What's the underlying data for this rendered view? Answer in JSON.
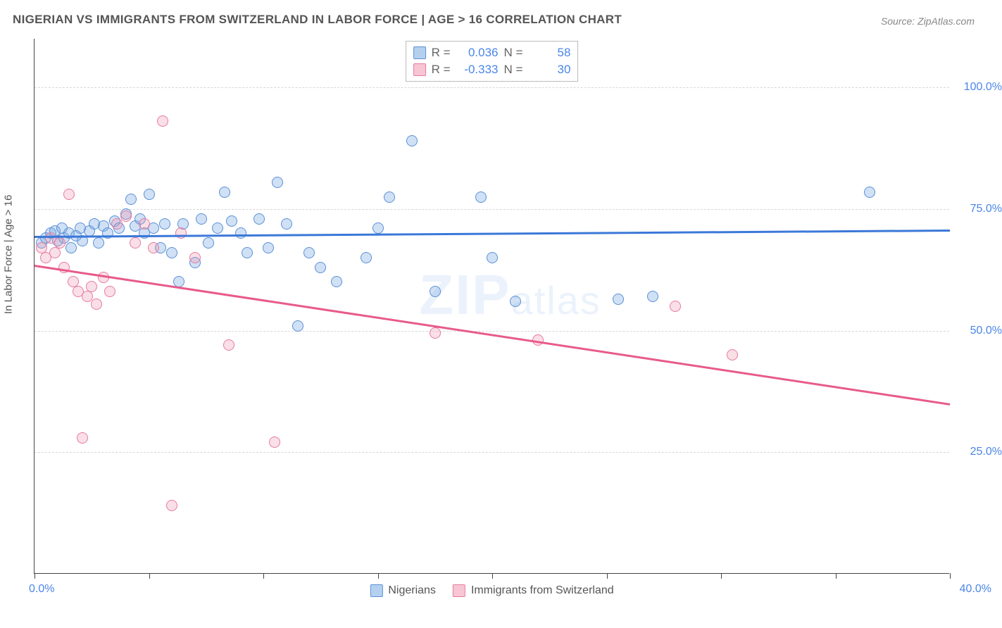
{
  "title": "NIGERIAN VS IMMIGRANTS FROM SWITZERLAND IN LABOR FORCE | AGE > 16 CORRELATION CHART",
  "source": "Source: ZipAtlas.com",
  "watermark_main": "ZIP",
  "watermark_sub": "atlas",
  "y_axis_title": "In Labor Force | Age > 16",
  "chart": {
    "type": "scatter",
    "background_color": "#ffffff",
    "grid_color": "#d7d7d7",
    "axis_color": "#444444",
    "xlim": [
      0,
      40
    ],
    "ylim": [
      0,
      110
    ],
    "x_ticks": [
      0,
      5,
      10,
      15,
      20,
      25,
      30,
      35,
      40
    ],
    "x_tick_labels": {
      "0": "0.0%",
      "40": "40.0%"
    },
    "y_gridlines": [
      25,
      50,
      75,
      100
    ],
    "y_labels": {
      "25": "25.0%",
      "50": "50.0%",
      "75": "75.0%",
      "100": "100.0%"
    },
    "marker_radius": 8,
    "series": [
      {
        "name": "Nigerians",
        "color_fill": "rgba(120,170,225,0.35)",
        "color_stroke": "#5b8fd6",
        "R": "0.036",
        "N": "58",
        "trend": {
          "x1": 0,
          "y1": 69.5,
          "x2": 40,
          "y2": 70.8,
          "color": "#3b78d8",
          "width": 2.5
        },
        "points": [
          [
            0.3,
            68
          ],
          [
            0.5,
            69
          ],
          [
            0.7,
            70
          ],
          [
            0.9,
            70.5
          ],
          [
            1.0,
            68.5
          ],
          [
            1.2,
            71
          ],
          [
            1.3,
            69
          ],
          [
            1.5,
            70
          ],
          [
            1.6,
            67
          ],
          [
            1.8,
            69.5
          ],
          [
            2.0,
            71
          ],
          [
            2.1,
            68.5
          ],
          [
            2.4,
            70.5
          ],
          [
            2.6,
            72
          ],
          [
            2.8,
            68
          ],
          [
            3.0,
            71.5
          ],
          [
            3.2,
            70
          ],
          [
            3.5,
            72.5
          ],
          [
            3.7,
            71
          ],
          [
            4.0,
            74
          ],
          [
            4.2,
            77
          ],
          [
            4.4,
            71.5
          ],
          [
            4.6,
            73
          ],
          [
            4.8,
            70
          ],
          [
            5.0,
            78
          ],
          [
            5.2,
            71
          ],
          [
            5.5,
            67
          ],
          [
            5.7,
            72
          ],
          [
            6.0,
            66
          ],
          [
            6.3,
            60
          ],
          [
            6.5,
            72
          ],
          [
            7.0,
            64
          ],
          [
            7.3,
            73
          ],
          [
            7.6,
            68
          ],
          [
            8.0,
            71
          ],
          [
            8.3,
            78.5
          ],
          [
            8.6,
            72.5
          ],
          [
            9.0,
            70
          ],
          [
            9.3,
            66
          ],
          [
            9.8,
            73
          ],
          [
            10.2,
            67
          ],
          [
            10.6,
            80.5
          ],
          [
            11.0,
            72
          ],
          [
            11.5,
            51
          ],
          [
            12.0,
            66
          ],
          [
            12.5,
            63
          ],
          [
            13.2,
            60
          ],
          [
            14.5,
            65
          ],
          [
            15.5,
            77.5
          ],
          [
            16.5,
            89
          ],
          [
            17.5,
            58
          ],
          [
            19.5,
            77.5
          ],
          [
            20.0,
            65
          ],
          [
            21.0,
            56
          ],
          [
            25.5,
            56.5
          ],
          [
            27.0,
            57
          ],
          [
            36.5,
            78.5
          ],
          [
            15.0,
            71
          ]
        ]
      },
      {
        "name": "Immigrants from Switzerland",
        "color_fill": "rgba(240,150,175,0.30)",
        "color_stroke": "#e77aa0",
        "R": "-0.333",
        "N": "30",
        "trend": {
          "x1": 0,
          "y1": 63.5,
          "x2": 40,
          "y2": 35,
          "color": "#e85a8b",
          "width": 2.5
        },
        "points": [
          [
            0.3,
            67
          ],
          [
            0.5,
            65
          ],
          [
            0.7,
            69
          ],
          [
            0.9,
            66
          ],
          [
            1.1,
            68
          ],
          [
            1.3,
            63
          ],
          [
            1.5,
            78
          ],
          [
            1.7,
            60
          ],
          [
            1.9,
            58
          ],
          [
            2.1,
            28
          ],
          [
            2.3,
            57
          ],
          [
            2.5,
            59
          ],
          [
            2.7,
            55.5
          ],
          [
            3.0,
            61
          ],
          [
            3.3,
            58
          ],
          [
            3.6,
            72
          ],
          [
            4.0,
            73.5
          ],
          [
            4.4,
            68
          ],
          [
            4.8,
            72
          ],
          [
            5.2,
            67
          ],
          [
            5.6,
            93
          ],
          [
            6.0,
            14
          ],
          [
            6.4,
            70
          ],
          [
            7.0,
            65
          ],
          [
            8.5,
            47
          ],
          [
            10.5,
            27
          ],
          [
            17.5,
            49.5
          ],
          [
            22.0,
            48
          ],
          [
            28.0,
            55
          ],
          [
            30.5,
            45
          ]
        ]
      }
    ]
  },
  "stats_box": {
    "rows": [
      {
        "swatch": "blue",
        "r_label": "R =",
        "r_value": "0.036",
        "n_label": "N =",
        "n_value": "58"
      },
      {
        "swatch": "pink",
        "r_label": "R =",
        "r_value": "-0.333",
        "n_label": "N =",
        "n_value": "30"
      }
    ]
  },
  "bottom_legend": [
    {
      "swatch": "blue",
      "label": "Nigerians"
    },
    {
      "swatch": "pink",
      "label": "Immigrants from Switzerland"
    }
  ]
}
